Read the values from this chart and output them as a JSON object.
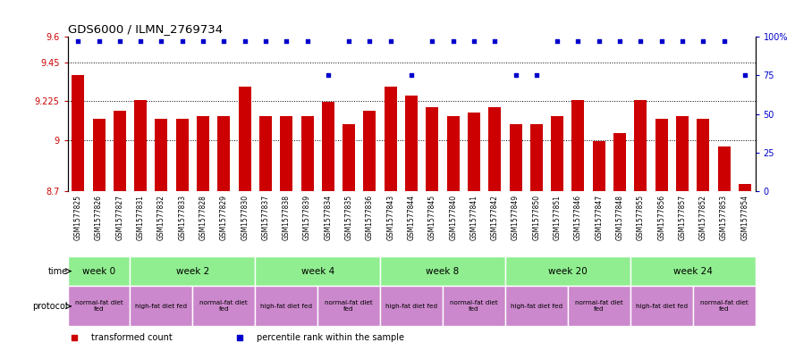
{
  "title": "GDS6000 / ILMN_2769734",
  "samples": [
    "GSM1577825",
    "GSM1577826",
    "GSM1577827",
    "GSM1577831",
    "GSM1577832",
    "GSM1577833",
    "GSM1577828",
    "GSM1577829",
    "GSM1577830",
    "GSM1577837",
    "GSM1577838",
    "GSM1577839",
    "GSM1577834",
    "GSM1577835",
    "GSM1577836",
    "GSM1577843",
    "GSM1577844",
    "GSM1577845",
    "GSM1577840",
    "GSM1577841",
    "GSM1577842",
    "GSM1577849",
    "GSM1577850",
    "GSM1577851",
    "GSM1577846",
    "GSM1577847",
    "GSM1577848",
    "GSM1577855",
    "GSM1577856",
    "GSM1577857",
    "GSM1577852",
    "GSM1577853",
    "GSM1577854"
  ],
  "red_values": [
    9.38,
    9.12,
    9.17,
    9.23,
    9.12,
    9.12,
    9.14,
    9.14,
    9.31,
    9.14,
    9.14,
    9.14,
    9.22,
    9.09,
    9.17,
    9.31,
    9.26,
    9.19,
    9.14,
    9.16,
    9.19,
    9.09,
    9.09,
    9.14,
    9.23,
    8.99,
    9.04,
    9.23,
    9.12,
    9.14,
    9.12,
    8.96,
    8.74
  ],
  "blue_values": [
    97,
    97,
    97,
    97,
    97,
    97,
    97,
    97,
    97,
    97,
    97,
    97,
    75,
    97,
    97,
    97,
    75,
    97,
    97,
    97,
    97,
    75,
    75,
    97,
    97,
    97,
    97,
    97,
    97,
    97,
    97,
    97,
    75
  ],
  "ylim_left": [
    8.7,
    9.6
  ],
  "ylim_right": [
    0,
    100
  ],
  "yticks_left": [
    8.7,
    9.0,
    9.225,
    9.45,
    9.6
  ],
  "yticks_left_labels": [
    "8.7",
    "9",
    "9.225",
    "9.45",
    "9.6"
  ],
  "yticks_right": [
    0,
    25,
    50,
    75,
    100
  ],
  "yticks_right_labels": [
    "0",
    "25",
    "50",
    "75",
    "100%"
  ],
  "hlines": [
    9.0,
    9.225,
    9.45
  ],
  "bar_color": "#cc0000",
  "dot_color": "#0000cc",
  "time_groups": [
    {
      "label": "week 0",
      "start": 0,
      "end": 3
    },
    {
      "label": "week 2",
      "start": 3,
      "end": 9
    },
    {
      "label": "week 4",
      "start": 9,
      "end": 15
    },
    {
      "label": "week 8",
      "start": 15,
      "end": 21
    },
    {
      "label": "week 20",
      "start": 21,
      "end": 27
    },
    {
      "label": "week 24",
      "start": 27,
      "end": 33
    }
  ],
  "time_color": "#90ee90",
  "protocol_groups": [
    {
      "label": "normal-fat diet\nfed",
      "start": 0,
      "end": 3
    },
    {
      "label": "high-fat diet fed",
      "start": 3,
      "end": 6
    },
    {
      "label": "normal-fat diet\nfed",
      "start": 6,
      "end": 9
    },
    {
      "label": "high-fat diet fed",
      "start": 9,
      "end": 12
    },
    {
      "label": "normal-fat diet\nfed",
      "start": 12,
      "end": 15
    },
    {
      "label": "high-fat diet fed",
      "start": 15,
      "end": 18
    },
    {
      "label": "normal-fat diet\nfed",
      "start": 18,
      "end": 21
    },
    {
      "label": "high-fat diet fed",
      "start": 21,
      "end": 24
    },
    {
      "label": "normal-fat diet\nfed",
      "start": 24,
      "end": 27
    },
    {
      "label": "high-fat diet fed",
      "start": 27,
      "end": 30
    },
    {
      "label": "normal-fat diet\nfed",
      "start": 30,
      "end": 33
    }
  ],
  "protocol_color": "#cc88cc",
  "legend_items": [
    {
      "label": "transformed count",
      "color": "#cc0000"
    },
    {
      "label": "percentile rank within the sample",
      "color": "#0000cc"
    }
  ],
  "background_color": "#ffffff",
  "tick_label_color_left": "#cc0000",
  "tick_label_color_right": "#0000cc",
  "label_outside_color": "#888888",
  "xtick_bg": "#cccccc"
}
